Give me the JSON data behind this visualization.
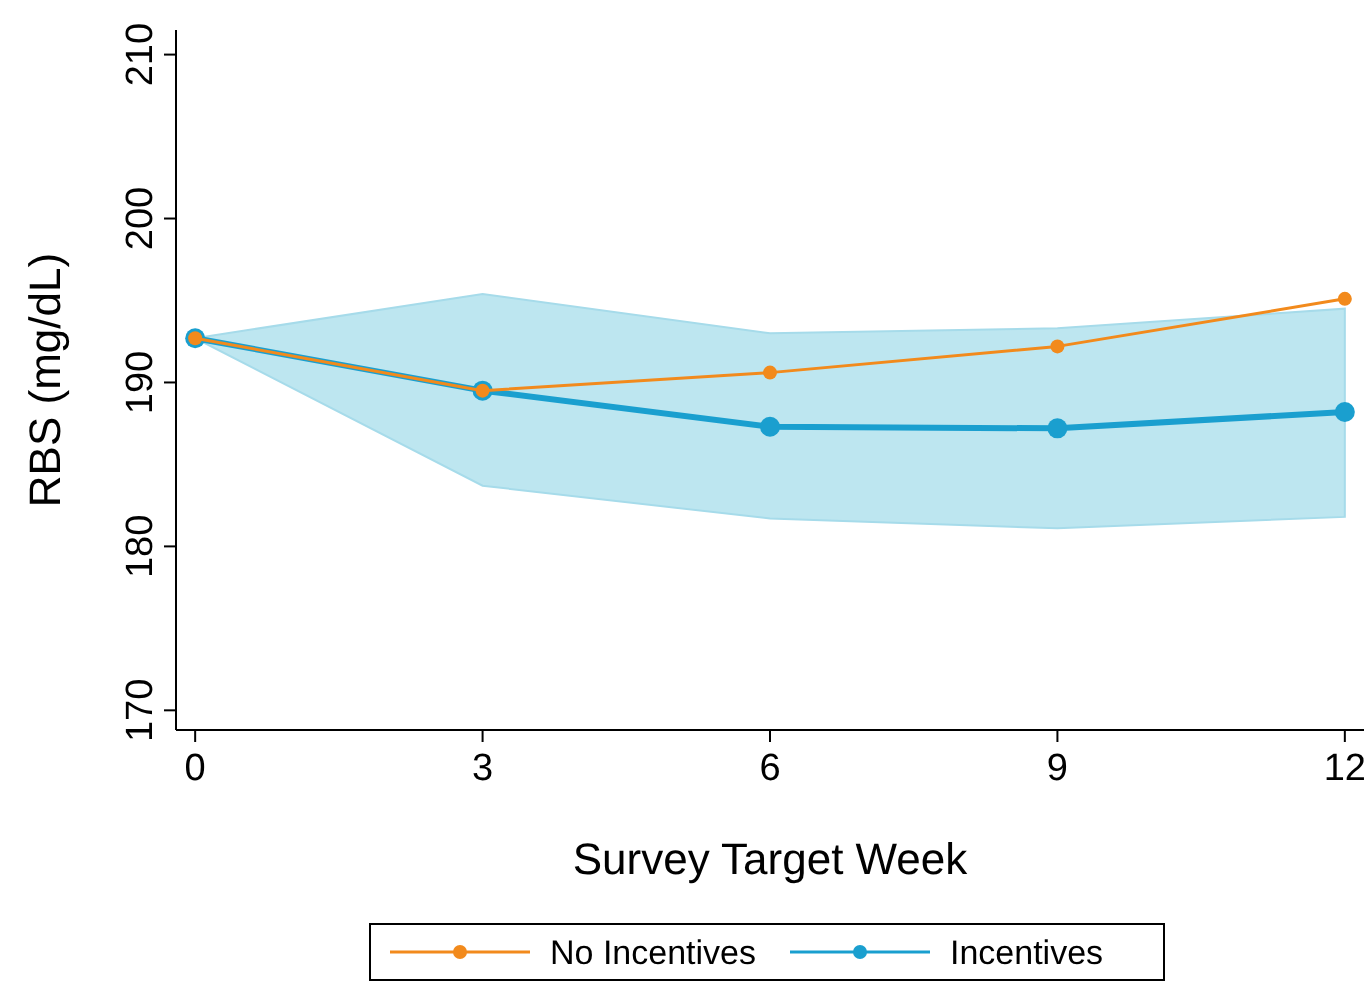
{
  "chart_data": {
    "type": "line",
    "xlabel": "Survey Target Week",
    "ylabel": "RBS (mg/dL)",
    "x": [
      0,
      3,
      6,
      9,
      12
    ],
    "series": [
      {
        "name": "No Incentives",
        "color": "#f28a1c",
        "values": [
          192.7,
          189.5,
          190.6,
          192.2,
          195.1
        ]
      },
      {
        "name": "Incentives",
        "color": "#1a9fcf",
        "values": [
          192.7,
          189.5,
          187.3,
          187.2,
          188.2
        ],
        "lower": [
          192.7,
          183.7,
          181.7,
          181.1,
          181.8
        ],
        "upper": [
          192.7,
          195.4,
          193.0,
          193.3,
          194.5
        ]
      }
    ],
    "xlim": [
      -0.2,
      12.2
    ],
    "xticks": [
      0,
      3,
      6,
      9,
      12
    ],
    "ylim": [
      168.8,
      211.5
    ],
    "yticks": [
      170,
      180,
      190,
      200,
      210
    ],
    "grid": false,
    "legend": "bottom",
    "marker": "circle",
    "line_style": "solid"
  }
}
